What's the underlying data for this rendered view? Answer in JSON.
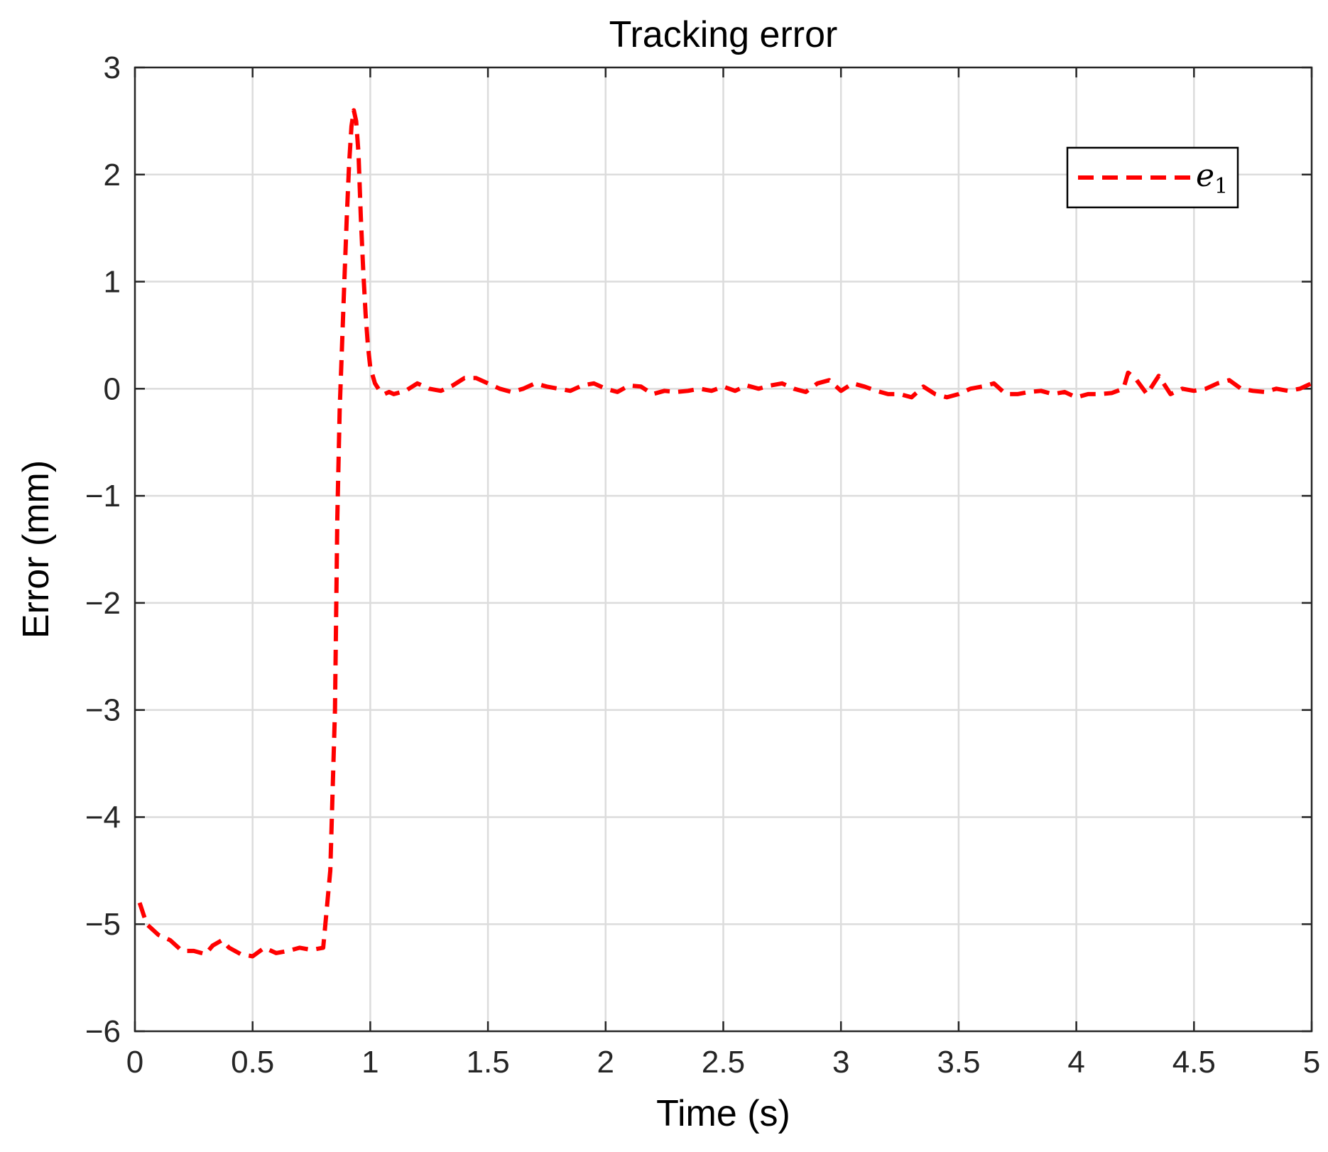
{
  "chart_data": {
    "type": "line",
    "title": "Tracking error",
    "xlabel": "Time (s)",
    "ylabel": "Error (mm)",
    "xlim": [
      0,
      5
    ],
    "ylim": [
      -6,
      3
    ],
    "xticks": [
      0,
      0.5,
      1,
      1.5,
      2,
      2.5,
      3,
      3.5,
      4,
      4.5,
      5
    ],
    "xtick_labels": [
      "0",
      "0.5",
      "1",
      "1.5",
      "2",
      "2.5",
      "3",
      "3.5",
      "4",
      "4.5",
      "5"
    ],
    "yticks": [
      -6,
      -5,
      -4,
      -3,
      -2,
      -1,
      0,
      1,
      2,
      3
    ],
    "ytick_labels": [
      "−6",
      "−5",
      "−4",
      "−3",
      "−2",
      "−1",
      "0",
      "1",
      "2",
      "3"
    ],
    "grid": true,
    "legend_position": "top-right",
    "series": [
      {
        "name": "e",
        "name_subscript": "1",
        "color": "#ff0000",
        "line_style": "dashed",
        "x": [
          0.02,
          0.05,
          0.1,
          0.15,
          0.2,
          0.25,
          0.3,
          0.33,
          0.37,
          0.4,
          0.45,
          0.5,
          0.55,
          0.6,
          0.65,
          0.7,
          0.75,
          0.8,
          0.83,
          0.85,
          0.86,
          0.87,
          0.88,
          0.89,
          0.9,
          0.91,
          0.92,
          0.93,
          0.94,
          0.95,
          0.96,
          0.97,
          0.98,
          0.99,
          1.0,
          1.02,
          1.04,
          1.06,
          1.08,
          1.1,
          1.15,
          1.2,
          1.25,
          1.3,
          1.35,
          1.4,
          1.45,
          1.5,
          1.55,
          1.6,
          1.65,
          1.7,
          1.75,
          1.8,
          1.85,
          1.9,
          1.95,
          2.0,
          2.05,
          2.1,
          2.15,
          2.2,
          2.25,
          2.3,
          2.35,
          2.4,
          2.45,
          2.5,
          2.55,
          2.6,
          2.65,
          2.7,
          2.75,
          2.8,
          2.85,
          2.9,
          2.95,
          3.0,
          3.05,
          3.1,
          3.15,
          3.2,
          3.25,
          3.3,
          3.35,
          3.4,
          3.45,
          3.5,
          3.55,
          3.6,
          3.65,
          3.7,
          3.75,
          3.8,
          3.85,
          3.9,
          3.95,
          4.0,
          4.05,
          4.1,
          4.15,
          4.2,
          4.22,
          4.25,
          4.3,
          4.35,
          4.4,
          4.45,
          4.5,
          4.55,
          4.6,
          4.65,
          4.7,
          4.75,
          4.8,
          4.85,
          4.9,
          4.95,
          5.0
        ],
        "y": [
          -4.8,
          -5.0,
          -5.1,
          -5.15,
          -5.25,
          -5.25,
          -5.28,
          -5.2,
          -5.15,
          -5.22,
          -5.28,
          -5.3,
          -5.22,
          -5.27,
          -5.25,
          -5.22,
          -5.24,
          -5.22,
          -4.5,
          -3.0,
          -1.2,
          -0.2,
          0.4,
          1.0,
          1.6,
          2.1,
          2.45,
          2.6,
          2.5,
          2.2,
          1.6,
          1.1,
          0.7,
          0.4,
          0.2,
          0.05,
          -0.02,
          -0.05,
          -0.03,
          -0.05,
          -0.02,
          0.05,
          0.0,
          -0.02,
          0.03,
          0.1,
          0.1,
          0.05,
          0.0,
          -0.03,
          0.0,
          0.05,
          0.02,
          0.0,
          -0.02,
          0.03,
          0.05,
          0.0,
          -0.03,
          0.03,
          0.02,
          -0.05,
          -0.02,
          -0.03,
          -0.02,
          0.0,
          -0.02,
          0.02,
          -0.02,
          0.03,
          0.0,
          0.03,
          0.05,
          0.0,
          -0.03,
          0.05,
          0.08,
          -0.02,
          0.05,
          0.02,
          -0.02,
          -0.05,
          -0.05,
          -0.08,
          0.02,
          -0.05,
          -0.08,
          -0.05,
          0.0,
          0.02,
          0.05,
          -0.05,
          -0.05,
          -0.03,
          -0.02,
          -0.05,
          -0.03,
          -0.08,
          -0.05,
          -0.05,
          -0.04,
          0.0,
          0.15,
          0.1,
          -0.05,
          0.12,
          -0.05,
          0.0,
          -0.02,
          0.0,
          0.05,
          0.08,
          0.0,
          -0.02,
          -0.03,
          0.0,
          -0.02,
          0.0,
          0.05
        ]
      }
    ]
  }
}
